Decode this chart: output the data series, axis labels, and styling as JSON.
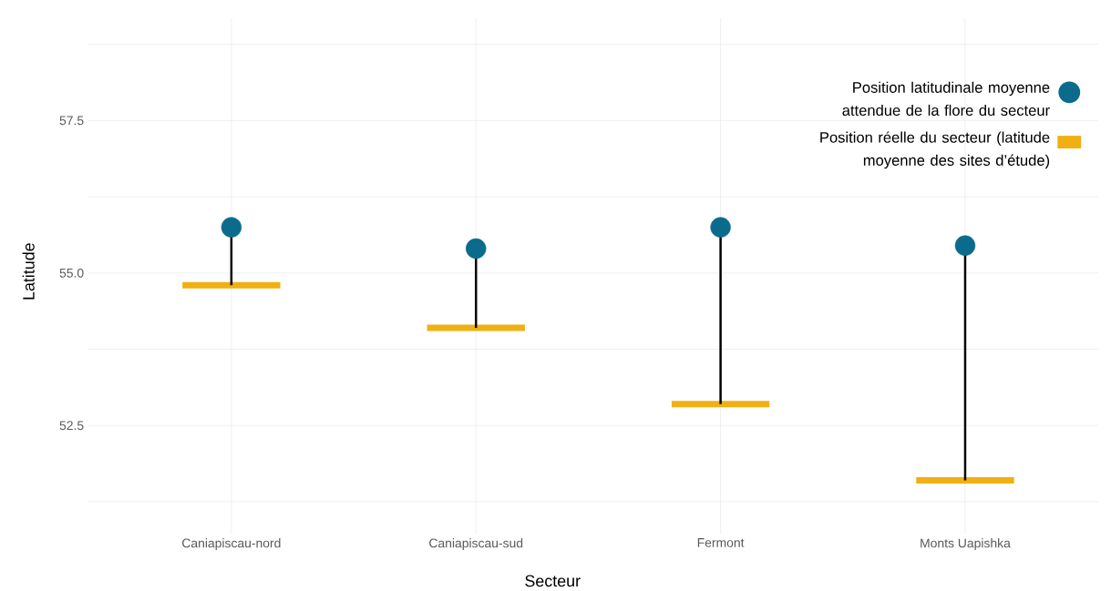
{
  "chart_data": {
    "type": "scatter",
    "xlabel": "Secteur",
    "ylabel": "Latitude",
    "categories": [
      "Caniapiscau-nord",
      "Caniapiscau-sud",
      "Fermont",
      "Monts Uapishka"
    ],
    "series": [
      {
        "name": "Position latitudinale moyenne attendue de la flore du secteur",
        "color": "#0b6b8c",
        "marker": "circle",
        "values": [
          55.75,
          55.4,
          55.75,
          55.45
        ],
        "errors": [
          [
            54.8,
            55.75
          ],
          [
            54.1,
            55.4
          ],
          [
            52.85,
            55.75
          ],
          [
            51.6,
            55.45
          ]
        ]
      },
      {
        "type": "box",
        "name": "Position réelle du secteur (latitude moyenne des sites d’étude)",
        "color": "#f0b012",
        "boxes": [
          {
            "low": 54.8,
            "q1": 54.8,
            "median": 54.8,
            "q3": 54.8,
            "high": 54.8
          },
          {
            "low": 54.1,
            "q1": 54.1,
            "median": 54.1,
            "q3": 54.1,
            "high": 54.1
          },
          {
            "low": 52.85,
            "q1": 52.85,
            "median": 52.85,
            "q3": 52.85,
            "high": 52.85
          },
          {
            "low": 51.6,
            "q1": 51.6,
            "median": 51.6,
            "q3": 51.6,
            "high": 51.6
          }
        ]
      }
    ],
    "ylim": [
      50.72,
      59.18
    ],
    "yticks": [
      {
        "value": 52.5,
        "label": "52.5"
      },
      {
        "value": 55.0,
        "label": "55.0"
      },
      {
        "value": 57.5,
        "label": "57.5"
      }
    ],
    "grid": true,
    "legend": "top right"
  }
}
